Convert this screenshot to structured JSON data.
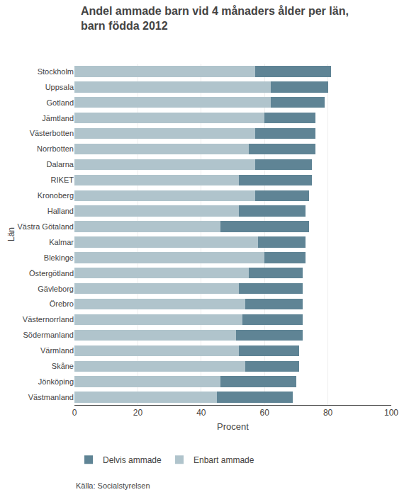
{
  "chart_data": {
    "type": "bar",
    "orientation": "horizontal",
    "stacked": true,
    "title": "Andel ammade barn vid 4 månaders ålder per län,",
    "subtitle": "barn födda 2012",
    "ylabel": "Län",
    "xlabel": "Procent",
    "source": "Källa: Socialstyrelsen",
    "categories": [
      "Stockholm",
      "Uppsala",
      "Gotland",
      "Jämtland",
      "Västerbotten",
      "Norrbotten",
      "Dalarna",
      "RIKET",
      "Kronoberg",
      "Halland",
      "Västra Götaland",
      "Kalmar",
      "Blekinge",
      "Östergötland",
      "Gävleborg",
      "Örebro",
      "Västernorrland",
      "Södermanland",
      "Värmland",
      "Skåne",
      "Jönköping",
      "Västmanland"
    ],
    "series": [
      {
        "name": "Enbart ammade",
        "color": "#b0c4cc",
        "values": [
          57,
          62,
          62,
          60,
          57,
          55,
          57,
          52,
          57,
          52,
          46,
          58,
          60,
          55,
          52,
          54,
          53,
          51,
          52,
          54,
          46,
          45
        ]
      },
      {
        "name": "Delvis ammade",
        "color": "#5f8495",
        "values": [
          24,
          18,
          17,
          16,
          19,
          21,
          18,
          23,
          17,
          21,
          28,
          15,
          13,
          17,
          20,
          18,
          19,
          21,
          19,
          17,
          24,
          24
        ]
      }
    ],
    "xlim": [
      0,
      100
    ],
    "xticks": [
      0,
      20,
      40,
      60,
      80,
      100
    ],
    "grid": true,
    "legend": "bottom"
  }
}
